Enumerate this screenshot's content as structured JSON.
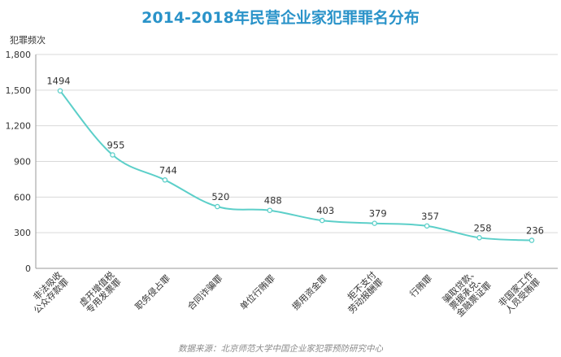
{
  "chart_data": {
    "type": "line",
    "title": "2014-2018年民营企业家犯罪罪名分布",
    "ylabel": "犯罪频次",
    "xlabel": "",
    "ylim": [
      0,
      1800
    ],
    "yticks": [
      "0",
      "300",
      "600",
      "900",
      "1,200",
      "1,500",
      "1,800"
    ],
    "ytick_values": [
      0,
      300,
      600,
      900,
      1200,
      1500,
      1800
    ],
    "grid": true,
    "categories": [
      [
        "非法吸收",
        "公众存款罪"
      ],
      [
        "虚开增值税",
        "专用发票罪"
      ],
      [
        "职务侵占罪"
      ],
      [
        "合同诈骗罪"
      ],
      [
        "单位行贿罪"
      ],
      [
        "挪用资金罪"
      ],
      [
        "拒不支付",
        "劳动报酬罪"
      ],
      [
        "行贿罪"
      ],
      [
        "骗取贷款、",
        "票据承兑、",
        "金融票证罪"
      ],
      [
        "非国家工作",
        "人员受贿罪"
      ]
    ],
    "series": [
      {
        "values": [
          1494,
          955,
          744,
          520,
          488,
          403,
          379,
          357,
          258,
          236
        ],
        "color": "#5ccfc9"
      }
    ],
    "source": "数据来源：北京师范大学中国企业家犯罪预防研究中心"
  }
}
